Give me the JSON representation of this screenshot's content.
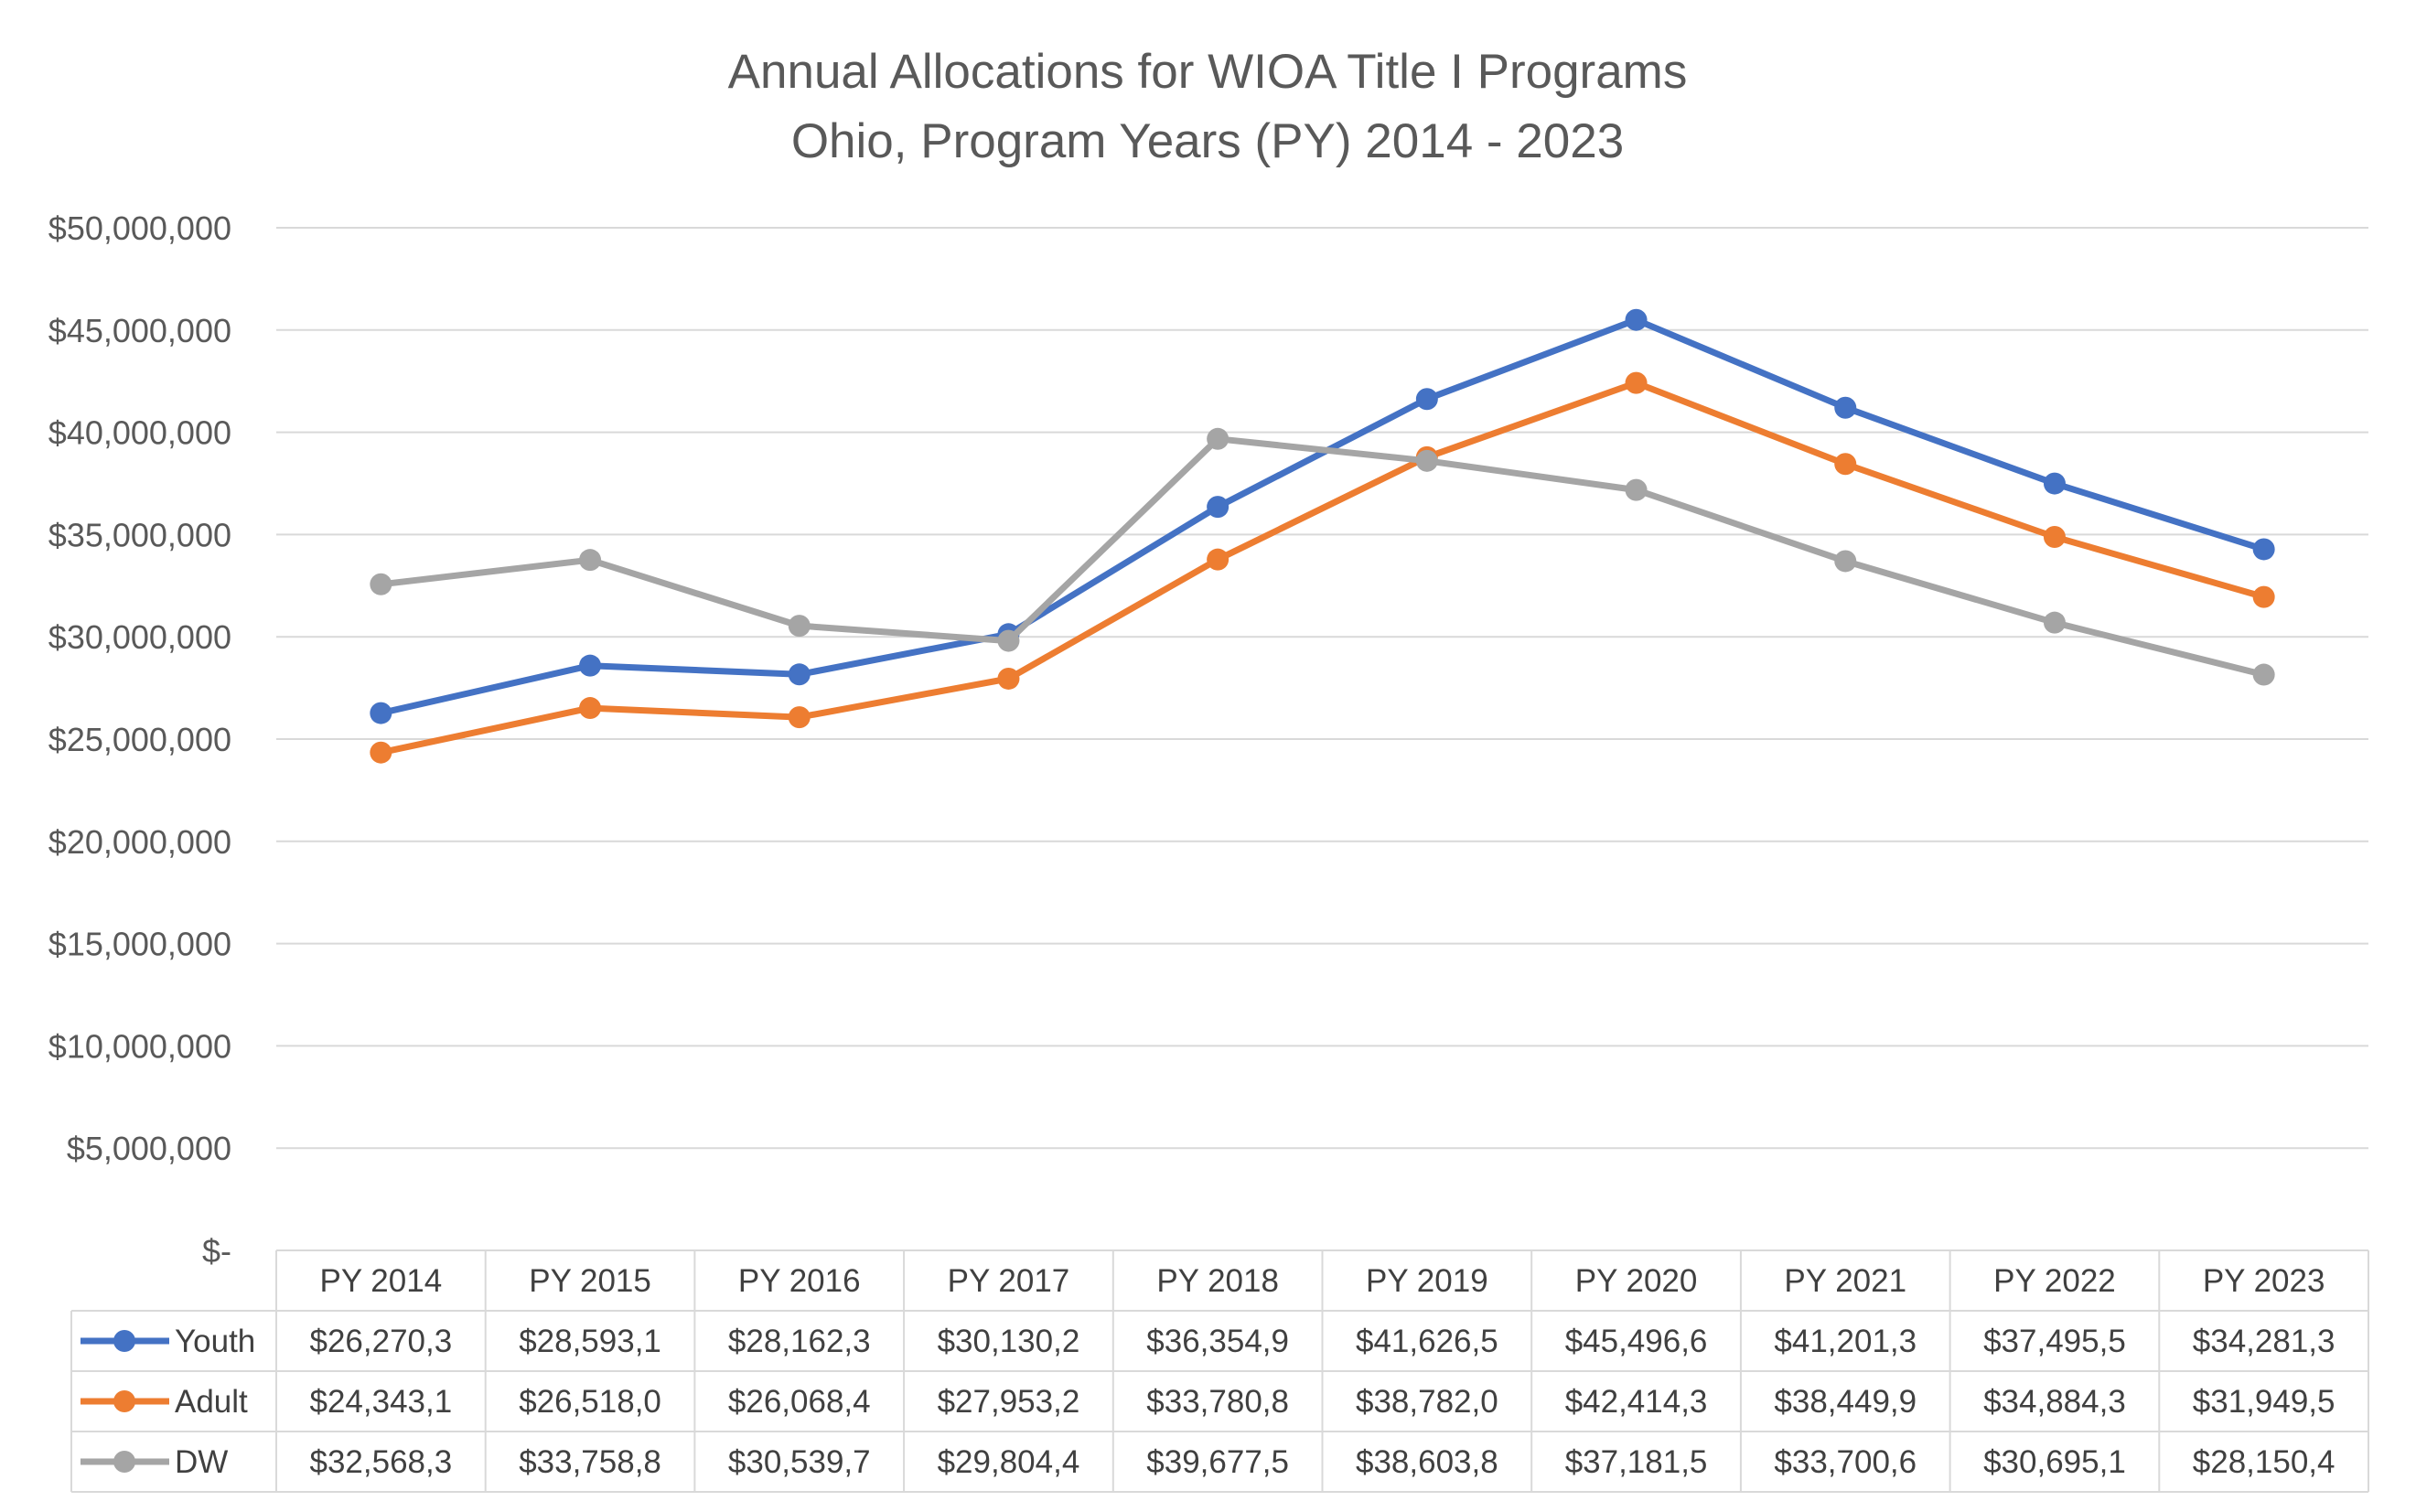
{
  "chart_data": {
    "type": "line",
    "title": "Annual Allocations for WIOA Title I Programs",
    "subtitle": "Ohio, Program Years (PY) 2014 - 2023",
    "categories": [
      "PY 2014",
      "PY 2015",
      "PY 2016",
      "PY 2017",
      "PY 2018",
      "PY 2019",
      "PY 2020",
      "PY 2021",
      "PY 2022",
      "PY 2023"
    ],
    "ylim": [
      0,
      50000000
    ],
    "yticks": [
      0,
      5000000,
      10000000,
      15000000,
      20000000,
      25000000,
      30000000,
      35000000,
      40000000,
      45000000,
      50000000
    ],
    "ytick_labels": [
      "$-",
      "$5,000,000",
      "$10,000,000",
      "$15,000,000",
      "$20,000,000",
      "$25,000,000",
      "$30,000,000",
      "$35,000,000",
      "$40,000,000",
      "$45,000,000",
      "$50,000,000"
    ],
    "grid": true,
    "legend": "data-table",
    "series": [
      {
        "name": "Youth",
        "color": "#4472C4",
        "values": [
          26270300,
          28593100,
          28162300,
          30130200,
          36354900,
          41626500,
          45496600,
          41201300,
          37495500,
          34281300
        ],
        "table_labels": [
          "$26,270,3",
          "$28,593,1",
          "$28,162,3",
          "$30,130,2",
          "$36,354,9",
          "$41,626,5",
          "$45,496,6",
          "$41,201,3",
          "$37,495,5",
          "$34,281,3"
        ]
      },
      {
        "name": "Adult",
        "color": "#ED7D31",
        "values": [
          24343100,
          26518000,
          26068400,
          27953200,
          33780800,
          38782000,
          42414300,
          38449900,
          34884300,
          31949500
        ],
        "table_labels": [
          "$24,343,1",
          "$26,518,0",
          "$26,068,4",
          "$27,953,2",
          "$33,780,8",
          "$38,782,0",
          "$42,414,3",
          "$38,449,9",
          "$34,884,3",
          "$31,949,5"
        ]
      },
      {
        "name": "DW",
        "color": "#A5A5A5",
        "values": [
          32568300,
          33758800,
          30539700,
          29804400,
          39677500,
          38603800,
          37181500,
          33700600,
          30695100,
          28150400
        ],
        "table_labels": [
          "$32,568,3",
          "$33,758,8",
          "$30,539,7",
          "$29,804,4",
          "$39,677,5",
          "$38,603,8",
          "$37,181,5",
          "$33,700,6",
          "$30,695,1",
          "$28,150,4"
        ]
      }
    ]
  }
}
